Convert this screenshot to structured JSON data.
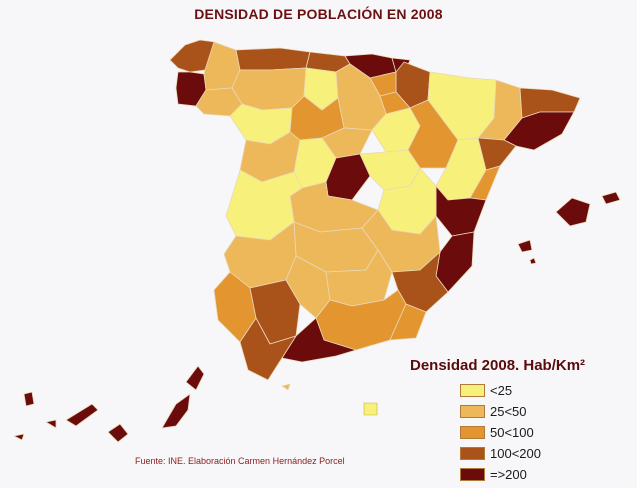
{
  "title": "DENSIDAD DE POBLACIÓN EN 2008",
  "legend": {
    "title": "Densidad 2008. Hab/Km²",
    "items": [
      {
        "label": "<25",
        "color": "#f7f07a"
      },
      {
        "label": "25<50",
        "color": "#edb85a"
      },
      {
        "label": "50<100",
        "color": "#e3952f"
      },
      {
        "label": "100<200",
        "color": "#a9531a"
      },
      {
        "label": "=>200",
        "color": "#6b0b0b"
      }
    ]
  },
  "source": "Fuente: INE. Elaboración Carmen Hernández Porcel"
}
